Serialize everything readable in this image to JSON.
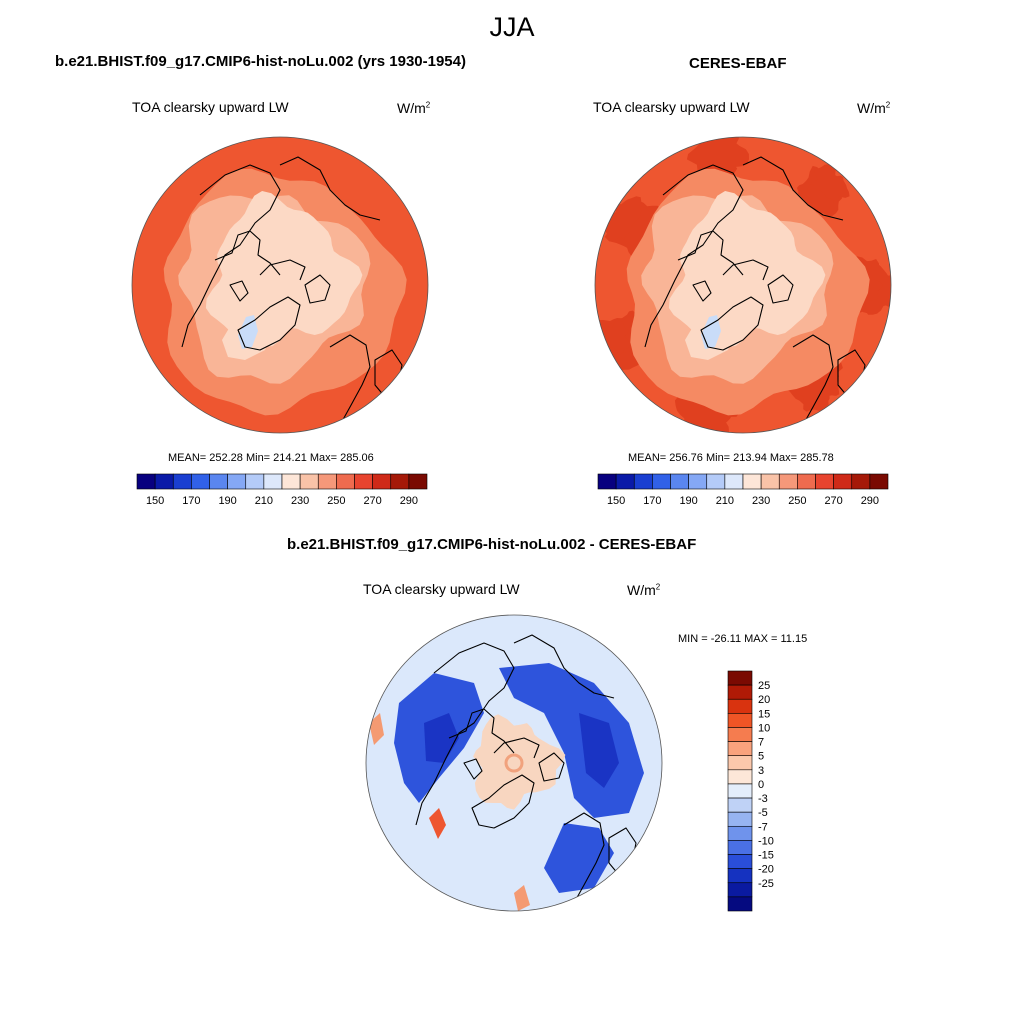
{
  "season": "JJA",
  "panels": [
    {
      "id": "model",
      "title": "b.e21.BHIST.f09_g17.CMIP6-hist-noLu.002 (yrs 1930-1954)",
      "variable": "TOA clearsky upward LW",
      "units": "W/m",
      "units_sup": "2",
      "stats": "MEAN= 252.28  Min= 214.21  Max= 285.06"
    },
    {
      "id": "obs",
      "title": "CERES-EBAF",
      "variable": "TOA clearsky upward LW",
      "units": "W/m",
      "units_sup": "2",
      "stats": "MEAN= 256.76  Min= 213.94  Max= 285.78"
    },
    {
      "id": "diff",
      "title": "b.e21.BHIST.f09_g17.CMIP6-hist-noLu.002 - CERES-EBAF",
      "variable": "TOA clearsky upward LW",
      "units": "W/m",
      "units_sup": "2",
      "stats": "MIN = -26.11 MAX =  11.15"
    }
  ],
  "colorbar_abs": {
    "colors": [
      "#08007f",
      "#0a1aa8",
      "#1a3fd1",
      "#3161e8",
      "#5a86f0",
      "#85a8f5",
      "#b4cbf8",
      "#dde8fb",
      "#fde6d8",
      "#f9c3a8",
      "#f5987a",
      "#ef6b4f",
      "#e8442f",
      "#cf2a18",
      "#a51908",
      "#7a0a02"
    ],
    "ticks": [
      "150",
      "170",
      "190",
      "210",
      "230",
      "250",
      "270",
      "290"
    ]
  },
  "colorbar_diff": {
    "colors": [
      "#7a0a02",
      "#b01a06",
      "#d9330f",
      "#ef5526",
      "#f57c4f",
      "#f9a27d",
      "#fbc8ac",
      "#fde7d8",
      "#e4eefb",
      "#bfd2f6",
      "#97b4f1",
      "#6f93ec",
      "#4a70e5",
      "#2a4ed9",
      "#1532c0",
      "#0a1aa0",
      "#050a80"
    ],
    "ticks": [
      "25",
      "20",
      "15",
      "10",
      "7",
      "5",
      "3",
      "0",
      "-3",
      "-5",
      "-7",
      "-10",
      "-15",
      "-20",
      "-25"
    ]
  },
  "map_colors": {
    "abs_outer": "#ee5630",
    "abs_mid": "#f58a63",
    "abs_light": "#f9b597",
    "abs_pale": "#fcd9c5",
    "abs_ice": "#c9dcf8",
    "diff_bg": "#dbe8fb",
    "diff_blue": "#2e54dc",
    "diff_deep": "#1a34c4",
    "diff_warm": "#f8d6c0",
    "diff_red": "#ee5630"
  }
}
